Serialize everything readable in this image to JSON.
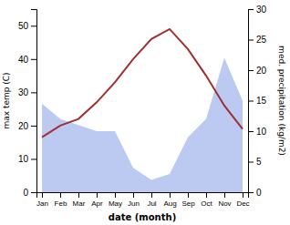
{
  "chart_data": {
    "type": "line",
    "categories": [
      "Jan",
      "Feb",
      "Mar",
      "Apr",
      "May",
      "Jun",
      "Jul",
      "Aug",
      "Sep",
      "Oct",
      "Nov",
      "Dec"
    ],
    "xlabel": "date (month)",
    "ylabel": "max temp (C)",
    "y2label": "med. precipitation (kg/m2)",
    "series": [
      {
        "type": "area",
        "axis": "y2",
        "color": "#b0c0ee",
        "values": [
          14.5,
          12,
          11,
          10,
          10,
          4,
          2,
          3,
          9,
          12,
          22,
          15
        ]
      },
      {
        "type": "line",
        "color": "#a03030",
        "values": [
          16.5,
          20,
          22,
          27,
          33,
          40,
          46,
          49,
          43,
          35,
          26,
          19
        ]
      }
    ],
    "ylim": [
      0,
      55
    ],
    "yticks": [
      0,
      10,
      20,
      30,
      40,
      50
    ],
    "y2lim": [
      0,
      30
    ],
    "y2ticks": [
      0,
      5,
      10,
      15,
      20,
      25,
      30
    ]
  }
}
